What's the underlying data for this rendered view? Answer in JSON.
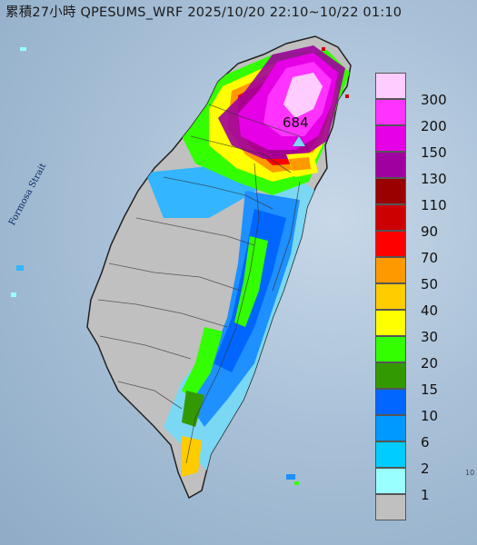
{
  "title": "累積27小時 QPESUMS_WRF 2025/10/20 22:10~10/22 01:10",
  "map_label": "Formosa Strait",
  "peak_value": "684",
  "edge_label": "10",
  "legend": {
    "entries": [
      {
        "label": "300",
        "color": "#ffccff"
      },
      {
        "label": "200",
        "color": "#ff33ff"
      },
      {
        "label": "150",
        "color": "#e600e6"
      },
      {
        "label": "130",
        "color": "#a000a0"
      },
      {
        "label": "110",
        "color": "#990000"
      },
      {
        "label": "90",
        "color": "#cc0000"
      },
      {
        "label": "70",
        "color": "#ff0000"
      },
      {
        "label": "50",
        "color": "#ff9900"
      },
      {
        "label": "40",
        "color": "#ffcc00"
      },
      {
        "label": "30",
        "color": "#ffff00"
      },
      {
        "label": "20",
        "color": "#33ff00"
      },
      {
        "label": "15",
        "color": "#339900"
      },
      {
        "label": "10",
        "color": "#0066ff"
      },
      {
        "label": "6",
        "color": "#0099ff"
      },
      {
        "label": "2",
        "color": "#00ccff"
      },
      {
        "label": "1",
        "color": "#99ffff"
      },
      {
        "label": "",
        "color": "#c0c0c0"
      }
    ]
  }
}
